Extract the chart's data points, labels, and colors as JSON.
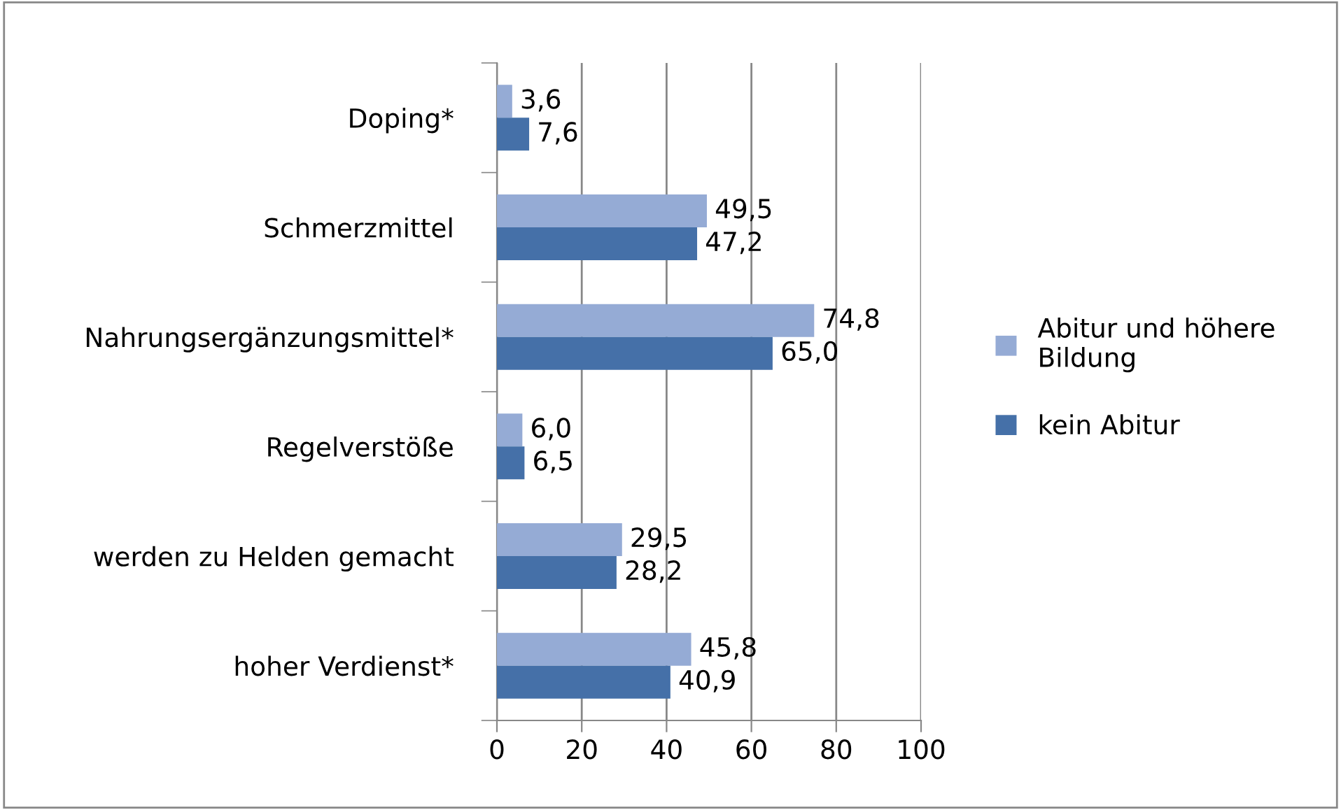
{
  "chart_data": {
    "type": "bar",
    "orientation": "horizontal",
    "categories": [
      "Doping*",
      "Schmerzmittel",
      "Nahrungsergänzungsmittel*",
      "Regelverstöße",
      "werden zu Helden gemacht",
      "hoher Verdienst*"
    ],
    "series": [
      {
        "name": "Abitur und höhere Bildung",
        "color": "#95abd5",
        "values": [
          3.6,
          49.5,
          74.8,
          6.0,
          29.5,
          45.8
        ],
        "value_labels": [
          "3,6",
          "49,5",
          "74,8",
          "6,0",
          "29,5",
          "45,8"
        ]
      },
      {
        "name": "kein Abitur",
        "color": "#4570a8",
        "values": [
          7.6,
          47.2,
          65.0,
          6.5,
          28.2,
          40.9
        ],
        "value_labels": [
          "7,6",
          "47,2",
          "65,0",
          "6,5",
          "28,2",
          "40,9"
        ]
      }
    ],
    "xlim": [
      0,
      100
    ],
    "xticks": [
      0,
      20,
      40,
      60,
      80,
      100
    ],
    "grid": "x",
    "legend": "right"
  }
}
